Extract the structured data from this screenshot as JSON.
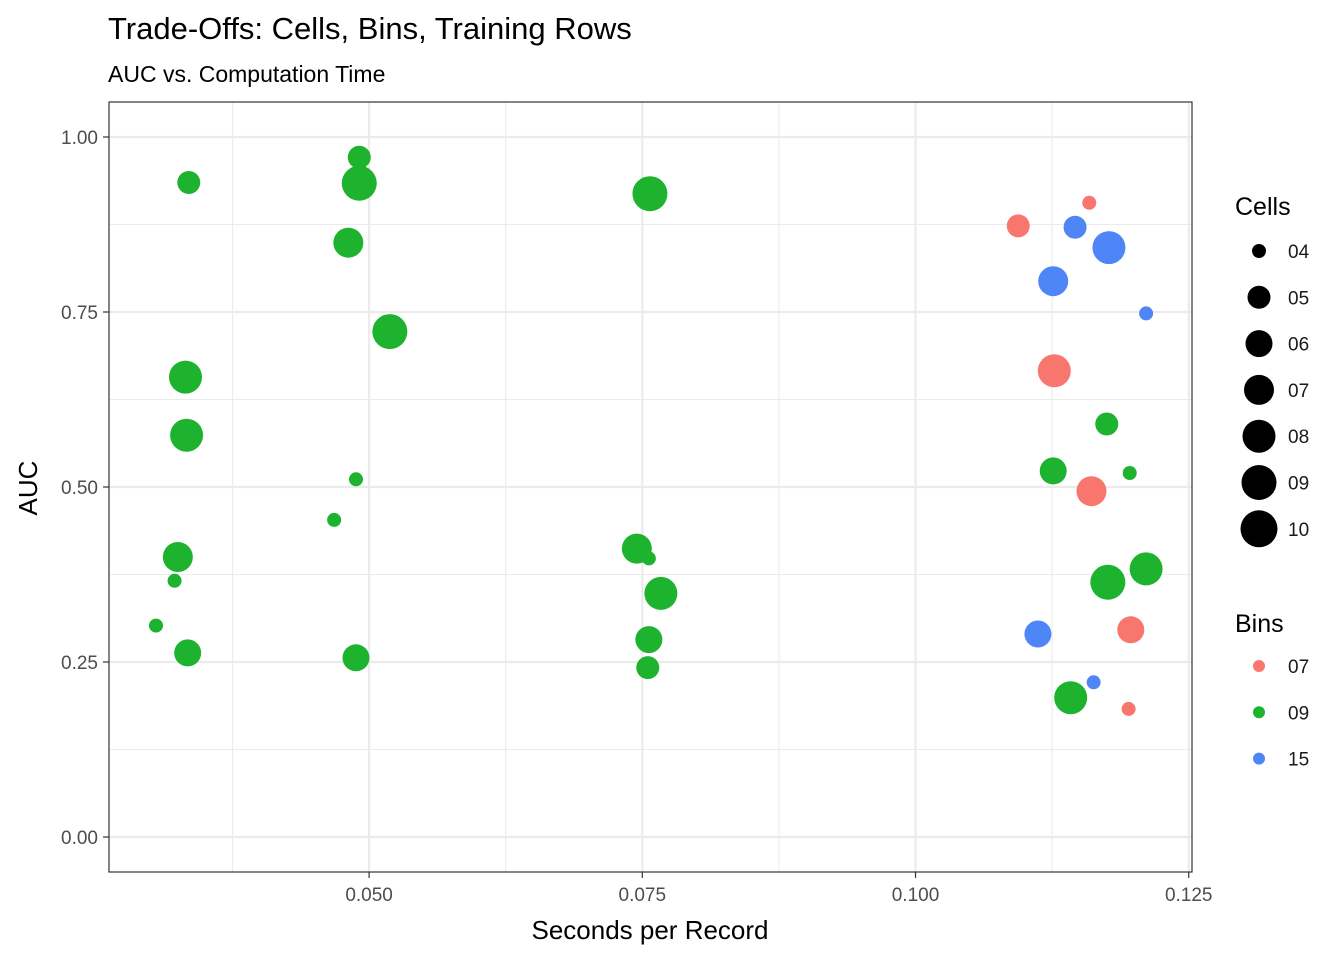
{
  "chart_data": {
    "type": "scatter",
    "title": "Trade-Offs: Cells, Bins, Training Rows",
    "subtitle": "AUC vs. Computation Time",
    "xlabel": "Seconds per Record",
    "ylabel": "AUC",
    "xlim": [
      0.0262,
      0.1253
    ],
    "ylim": [
      -0.05,
      1.05
    ],
    "x_ticks": [
      0.05,
      0.075,
      0.1,
      0.125
    ],
    "x_tick_labels": [
      "0.050",
      "0.075",
      "0.100",
      "0.125"
    ],
    "y_ticks": [
      0.0,
      0.25,
      0.5,
      0.75,
      1.0
    ],
    "y_tick_labels": [
      "0.00",
      "0.25",
      "0.50",
      "0.75",
      "1.00"
    ],
    "grid": true,
    "size_legend": {
      "title": "Cells",
      "levels": [
        "04",
        "05",
        "06",
        "07",
        "08",
        "09",
        "10"
      ]
    },
    "color_legend": {
      "title": "Bins",
      "levels": [
        "07",
        "09",
        "15"
      ],
      "colors": {
        "07": "#F8766D",
        "09": "#1DB32E",
        "15": "#4F86F7"
      }
    },
    "points": [
      {
        "x": 0.0335,
        "y": 0.935,
        "bins": "09",
        "cells": "05"
      },
      {
        "x": 0.0332,
        "y": 0.657,
        "bins": "09",
        "cells": "08"
      },
      {
        "x": 0.0333,
        "y": 0.574,
        "bins": "09",
        "cells": "08"
      },
      {
        "x": 0.0325,
        "y": 0.4,
        "bins": "09",
        "cells": "07"
      },
      {
        "x": 0.0322,
        "y": 0.366,
        "bins": "09",
        "cells": "04"
      },
      {
        "x": 0.0305,
        "y": 0.302,
        "bins": "09",
        "cells": "04"
      },
      {
        "x": 0.0334,
        "y": 0.263,
        "bins": "09",
        "cells": "06"
      },
      {
        "x": 0.0491,
        "y": 0.971,
        "bins": "09",
        "cells": "05"
      },
      {
        "x": 0.0491,
        "y": 0.934,
        "bins": "09",
        "cells": "09"
      },
      {
        "x": 0.0481,
        "y": 0.849,
        "bins": "09",
        "cells": "07"
      },
      {
        "x": 0.0519,
        "y": 0.722,
        "bins": "09",
        "cells": "09"
      },
      {
        "x": 0.0488,
        "y": 0.511,
        "bins": "09",
        "cells": "04"
      },
      {
        "x": 0.0468,
        "y": 0.453,
        "bins": "09",
        "cells": "04"
      },
      {
        "x": 0.0488,
        "y": 0.256,
        "bins": "09",
        "cells": "06"
      },
      {
        "x": 0.0757,
        "y": 0.919,
        "bins": "09",
        "cells": "09"
      },
      {
        "x": 0.0745,
        "y": 0.412,
        "bins": "09",
        "cells": "07"
      },
      {
        "x": 0.0756,
        "y": 0.398,
        "bins": "09",
        "cells": "04"
      },
      {
        "x": 0.0767,
        "y": 0.348,
        "bins": "09",
        "cells": "08"
      },
      {
        "x": 0.0756,
        "y": 0.282,
        "bins": "09",
        "cells": "06"
      },
      {
        "x": 0.0755,
        "y": 0.242,
        "bins": "09",
        "cells": "05"
      },
      {
        "x": 0.1159,
        "y": 0.906,
        "bins": "07",
        "cells": "04"
      },
      {
        "x": 0.1094,
        "y": 0.873,
        "bins": "07",
        "cells": "05"
      },
      {
        "x": 0.1127,
        "y": 0.666,
        "bins": "07",
        "cells": "08"
      },
      {
        "x": 0.1161,
        "y": 0.494,
        "bins": "07",
        "cells": "07"
      },
      {
        "x": 0.1197,
        "y": 0.296,
        "bins": "07",
        "cells": "06"
      },
      {
        "x": 0.1195,
        "y": 0.183,
        "bins": "07",
        "cells": "04"
      },
      {
        "x": 0.1146,
        "y": 0.871,
        "bins": "15",
        "cells": "05"
      },
      {
        "x": 0.1177,
        "y": 0.842,
        "bins": "15",
        "cells": "08"
      },
      {
        "x": 0.1126,
        "y": 0.794,
        "bins": "15",
        "cells": "07"
      },
      {
        "x": 0.1211,
        "y": 0.748,
        "bins": "15",
        "cells": "04"
      },
      {
        "x": 0.1112,
        "y": 0.29,
        "bins": "15",
        "cells": "06"
      },
      {
        "x": 0.1163,
        "y": 0.221,
        "bins": "15",
        "cells": "04"
      },
      {
        "x": 0.1175,
        "y": 0.59,
        "bins": "09",
        "cells": "05"
      },
      {
        "x": 0.1126,
        "y": 0.523,
        "bins": "09",
        "cells": "06"
      },
      {
        "x": 0.1196,
        "y": 0.52,
        "bins": "09",
        "cells": "04"
      },
      {
        "x": 0.1211,
        "y": 0.383,
        "bins": "09",
        "cells": "08"
      },
      {
        "x": 0.1176,
        "y": 0.364,
        "bins": "09",
        "cells": "09"
      },
      {
        "x": 0.1142,
        "y": 0.199,
        "bins": "09",
        "cells": "08"
      }
    ]
  }
}
